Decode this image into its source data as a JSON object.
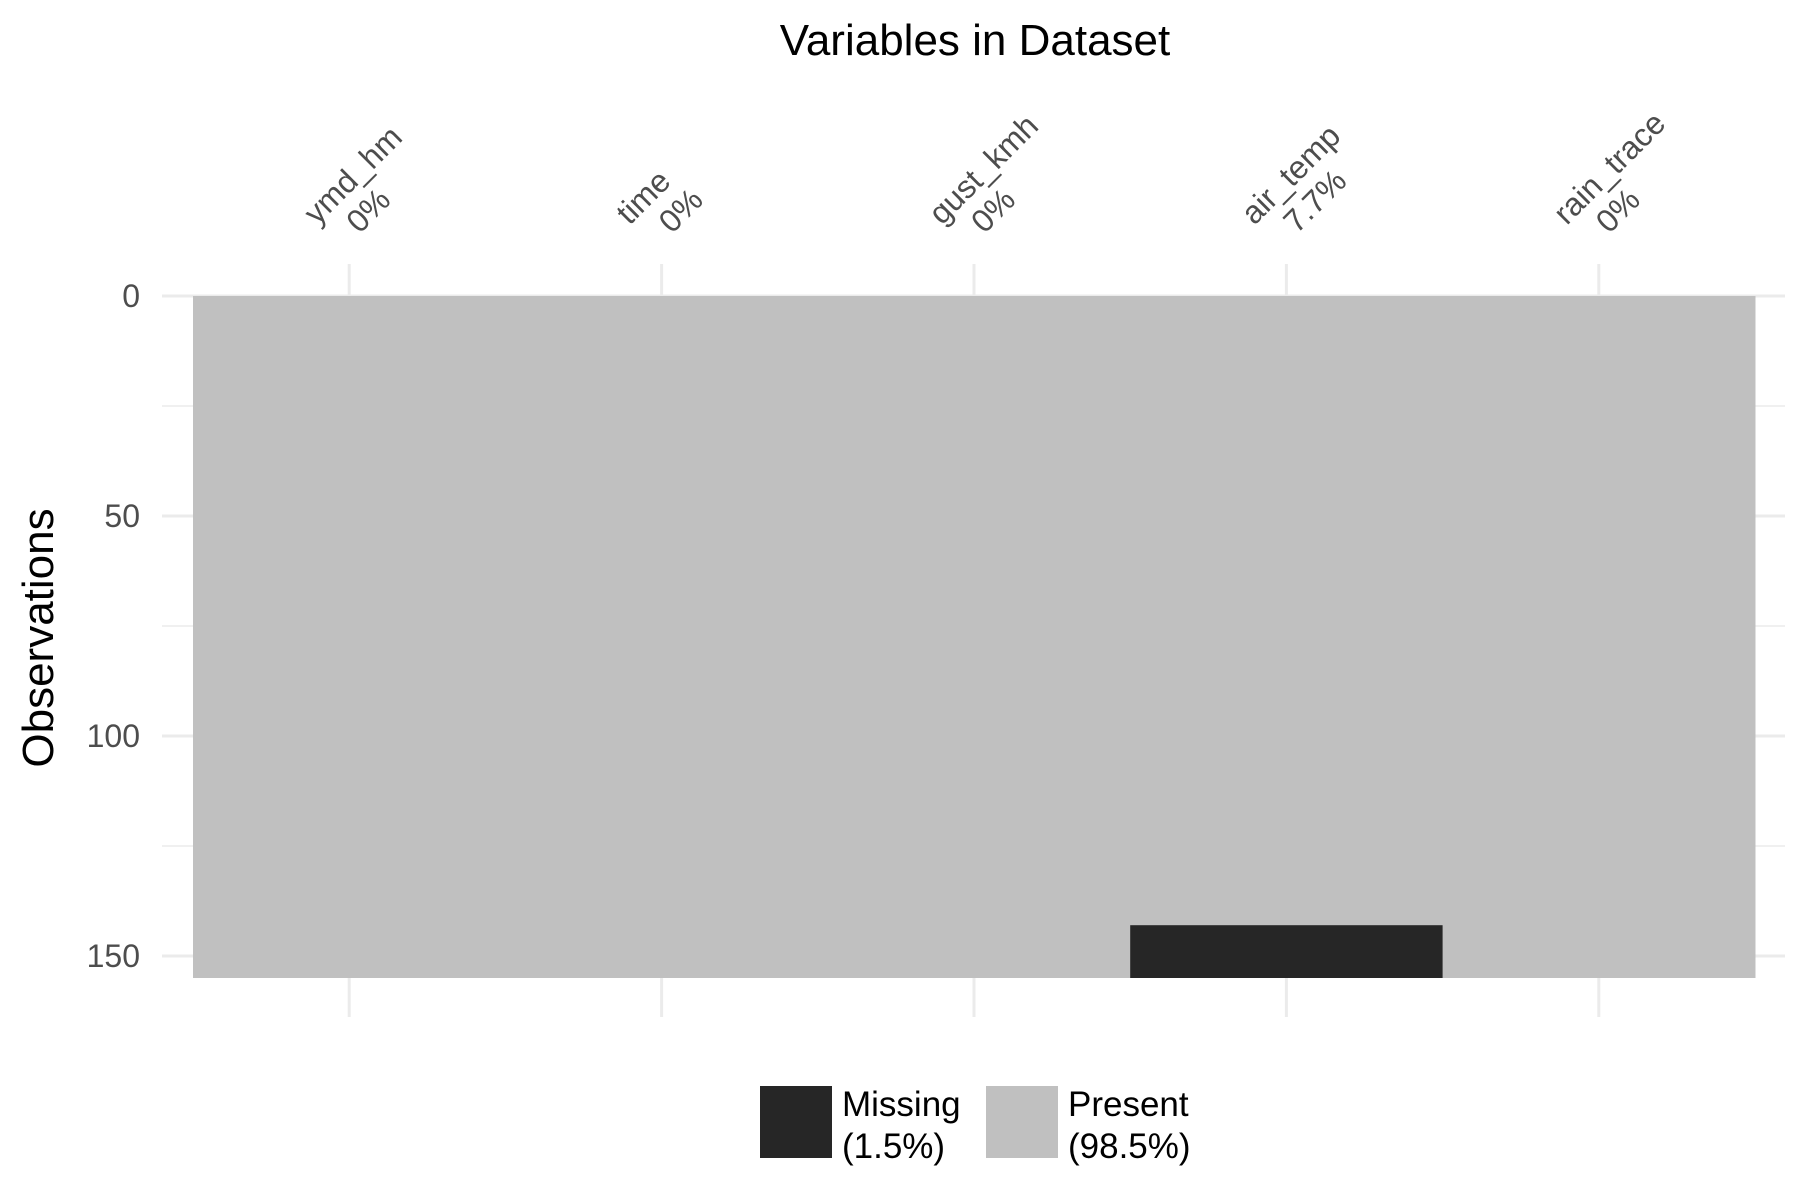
{
  "chart_data": {
    "type": "heatmap",
    "title": "Variables in Dataset",
    "xlabel": "",
    "ylabel": "Observations",
    "n_rows": 155,
    "y_ticks": [
      0,
      50,
      100,
      150
    ],
    "ylim": [
      0,
      155
    ],
    "grid": true,
    "variables": [
      {
        "name": "ymd_hm",
        "pct_label": "0%"
      },
      {
        "name": "time",
        "pct_label": "0%"
      },
      {
        "name": "gust_kmh",
        "pct_label": "0%"
      },
      {
        "name": "air_temp",
        "pct_label": "7.7%"
      },
      {
        "name": "rain_trace",
        "pct_label": "0%"
      }
    ],
    "missing_blocks": [
      {
        "variable": "air_temp",
        "row_start": 143,
        "row_end": 155
      }
    ],
    "legend": {
      "position": "bottom",
      "items": [
        {
          "line1": "Missing",
          "line2": "(1.5%)",
          "color": "#262626"
        },
        {
          "line1": "Present",
          "line2": "(98.5%)",
          "color": "#c0c0c0"
        }
      ]
    },
    "colors": {
      "missing": "#262626",
      "present": "#c0c0c0",
      "grid": "#ebebeb"
    }
  }
}
